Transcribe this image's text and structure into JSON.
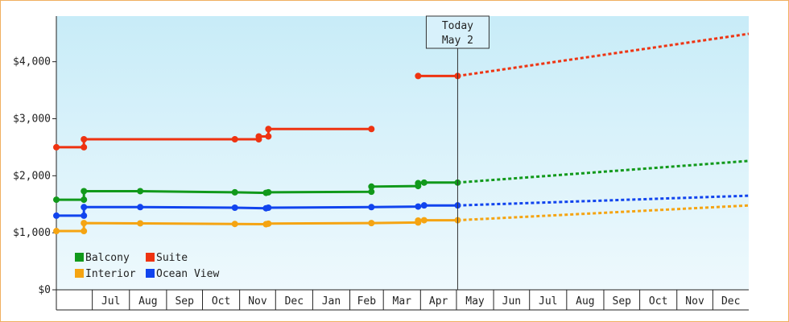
{
  "chart_data": {
    "type": "line",
    "title": "",
    "xlabel": "",
    "ylabel": "",
    "y_ticks": [
      "$0",
      "$1,000",
      "$2,000",
      "$3,000",
      "$4,000"
    ],
    "ylim": [
      0,
      4800
    ],
    "x_range": [
      "2013-06-01",
      "2014-12-31"
    ],
    "x_month_labels": [
      "Jul",
      "Aug",
      "Sep",
      "Oct",
      "Nov",
      "Dec",
      "Jan",
      "Feb",
      "Mar",
      "Apr",
      "May",
      "Jun",
      "Jul",
      "Aug",
      "Sep",
      "Oct",
      "Nov",
      "Dec"
    ],
    "today": {
      "label": "Today",
      "date_label": "May 2",
      "date": "2014-05-02"
    },
    "background": {
      "top": "#c8ecf8",
      "bottom": "#eef9fd"
    },
    "legend": {
      "position": "bottom-left"
    },
    "series": [
      {
        "name": "Balcony",
        "color": "#11991b",
        "points": [
          [
            "2013-06-01",
            1580
          ],
          [
            "2013-06-24",
            1580
          ],
          [
            "2013-06-24",
            1730
          ],
          [
            "2013-08-10",
            1730
          ],
          [
            "2013-10-28",
            1710
          ],
          [
            "2013-11-23",
            1700
          ],
          [
            "2013-11-25",
            1710
          ],
          [
            "2014-02-19",
            1720
          ],
          [
            "2014-02-19",
            1810
          ],
          [
            "2014-03-30",
            1820
          ],
          [
            "2014-03-30",
            1870
          ],
          [
            "2014-04-04",
            1880
          ],
          [
            "2014-05-02",
            1880
          ]
        ],
        "forecast": [
          [
            "2014-05-02",
            1880
          ],
          [
            "2014-12-31",
            2260
          ]
        ]
      },
      {
        "name": "Suite",
        "color": "#ee3311",
        "points": [
          [
            "2013-06-01",
            2500
          ],
          [
            "2013-06-24",
            2500
          ],
          [
            "2013-06-24",
            2640
          ],
          [
            "2013-10-28",
            2640
          ],
          [
            "2013-11-17",
            2640
          ],
          [
            "2013-11-17",
            2690
          ],
          [
            "2013-11-25",
            2690
          ],
          [
            "2013-11-25",
            2820
          ],
          [
            "2014-02-19",
            2820
          ]
        ],
        "points_b": [
          [
            "2014-03-30",
            3750
          ],
          [
            "2014-05-02",
            3750
          ]
        ],
        "forecast": [
          [
            "2014-05-02",
            3750
          ],
          [
            "2014-12-31",
            4490
          ]
        ]
      },
      {
        "name": "Interior",
        "color": "#f5a412",
        "points": [
          [
            "2013-06-01",
            1030
          ],
          [
            "2013-06-24",
            1030
          ],
          [
            "2013-06-24",
            1170
          ],
          [
            "2013-08-10",
            1165
          ],
          [
            "2013-10-28",
            1155
          ],
          [
            "2013-11-23",
            1150
          ],
          [
            "2013-11-25",
            1160
          ],
          [
            "2014-02-19",
            1170
          ],
          [
            "2014-03-30",
            1180
          ],
          [
            "2014-03-30",
            1215
          ],
          [
            "2014-04-04",
            1220
          ],
          [
            "2014-05-02",
            1220
          ]
        ],
        "forecast": [
          [
            "2014-05-02",
            1220
          ],
          [
            "2014-12-31",
            1480
          ]
        ]
      },
      {
        "name": "Ocean View",
        "color": "#1144ee",
        "points": [
          [
            "2013-06-01",
            1300
          ],
          [
            "2013-06-24",
            1300
          ],
          [
            "2013-06-24",
            1450
          ],
          [
            "2013-08-10",
            1450
          ],
          [
            "2013-10-28",
            1440
          ],
          [
            "2013-11-23",
            1430
          ],
          [
            "2013-11-25",
            1440
          ],
          [
            "2014-02-19",
            1450
          ],
          [
            "2014-03-30",
            1460
          ],
          [
            "2014-04-04",
            1480
          ],
          [
            "2014-05-02",
            1480
          ]
        ],
        "forecast": [
          [
            "2014-05-02",
            1480
          ],
          [
            "2014-12-31",
            1650
          ]
        ]
      }
    ],
    "legend_order": [
      "Balcony",
      "Suite",
      "Interior",
      "Ocean View"
    ]
  }
}
